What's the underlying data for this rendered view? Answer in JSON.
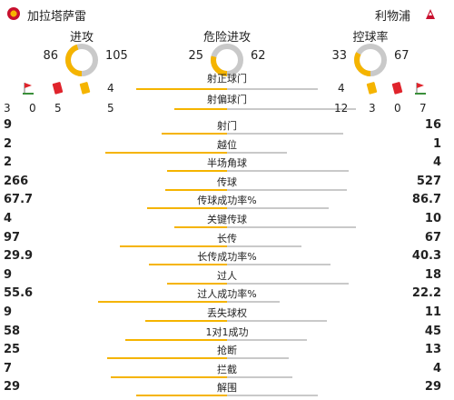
{
  "header": {
    "home_team": "加拉塔萨雷",
    "away_team": "利物浦"
  },
  "donuts": [
    {
      "title": "进攻",
      "home": "86",
      "away": "105",
      "home_frac": 0.45
    },
    {
      "title": "危险进攻",
      "home": "25",
      "away": "62",
      "home_frac": 0.29
    },
    {
      "title": "控球率",
      "home": "33",
      "away": "67",
      "home_frac": 0.33
    }
  ],
  "on_target": {
    "label": "射正球门",
    "home": "4",
    "away": "4",
    "home_frac": 0.5
  },
  "off_target": {
    "label": "射偏球门",
    "home": "5",
    "away": "12",
    "home_frac": 0.29
  },
  "cards_home": {
    "corners": "3",
    "red": "0",
    "yellow": "5"
  },
  "cards_away": {
    "yellow": "3",
    "red": "0",
    "corners": "7"
  },
  "stats": [
    {
      "label": "射门",
      "home": "9",
      "away": "16",
      "home_frac": 0.36
    },
    {
      "label": "越位",
      "home": "2",
      "away": "1",
      "home_frac": 0.67
    },
    {
      "label": "半场角球",
      "home": "2",
      "away": "4",
      "home_frac": 0.33
    },
    {
      "label": "传球",
      "home": "266",
      "away": "527",
      "home_frac": 0.34
    },
    {
      "label": "传球成功率%",
      "home": "67.7",
      "away": "86.7",
      "home_frac": 0.44
    },
    {
      "label": "关键传球",
      "home": "4",
      "away": "10",
      "home_frac": 0.29
    },
    {
      "label": "长传",
      "home": "97",
      "away": "67",
      "home_frac": 0.59
    },
    {
      "label": "长传成功率%",
      "home": "29.9",
      "away": "40.3",
      "home_frac": 0.43
    },
    {
      "label": "过人",
      "home": "9",
      "away": "18",
      "home_frac": 0.33
    },
    {
      "label": "过人成功率%",
      "home": "55.6",
      "away": "22.2",
      "home_frac": 0.71
    },
    {
      "label": "丢失球权",
      "home": "9",
      "away": "11",
      "home_frac": 0.45
    },
    {
      "label": "1对1成功",
      "home": "58",
      "away": "45",
      "home_frac": 0.56
    },
    {
      "label": "抢断",
      "home": "25",
      "away": "13",
      "home_frac": 0.66
    },
    {
      "label": "拦截",
      "home": "7",
      "away": "4",
      "home_frac": 0.64
    },
    {
      "label": "解围",
      "home": "29",
      "away": "29",
      "home_frac": 0.5
    }
  ],
  "colors": {
    "home": "#f5b400",
    "away": "#c9c9c9",
    "red_card": "#e0242c",
    "yellow_card": "#f5b400"
  }
}
